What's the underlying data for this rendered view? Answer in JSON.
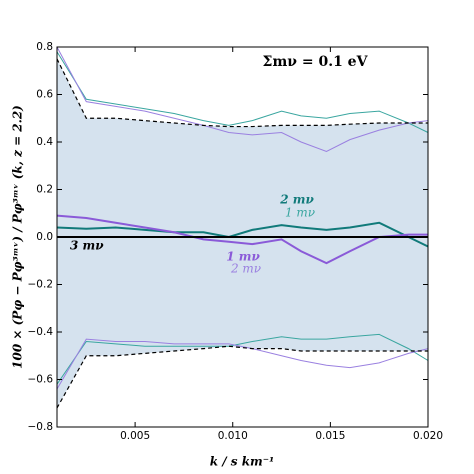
{
  "chart_data": {
    "type": "line",
    "title": "Σmν = 0.1 eV",
    "xlabel": "k / s km⁻¹",
    "ylabel": "100 × (Pφ − Pφ³ᵐᵛ) / Pφ³ᵐᵛ (k, z = 2.2)",
    "x": [
      0.001,
      0.0025,
      0.004,
      0.0055,
      0.007,
      0.0085,
      0.0098,
      0.011,
      0.0125,
      0.0135,
      0.0148,
      0.016,
      0.0175,
      0.019,
      0.02
    ],
    "xlim": [
      0.001,
      0.02
    ],
    "xticks": [
      0.005,
      {
        "value": 0.01,
        "label": "0.010"
      },
      0.015,
      {
        "value": 0.02,
        "label": "0.020"
      }
    ],
    "ylim": [
      -0.8,
      0.8
    ],
    "yticks": [
      {
        "value": -0.8,
        "label": "−0.8"
      },
      {
        "value": -0.6,
        "label": "−0.6"
      },
      {
        "value": -0.4,
        "label": "−0.4"
      },
      {
        "value": -0.2,
        "label": "−0.2"
      },
      {
        "value": 0,
        "label": "0.0"
      },
      0.2,
      0.4,
      0.6,
      0.8
    ],
    "band_color": "#d5e2ee",
    "series": [
      {
        "color": "#3aa6a0",
        "width": 1,
        "values": [
          0.78,
          0.58,
          0.56,
          0.54,
          0.52,
          0.49,
          0.47,
          0.49,
          0.53,
          0.51,
          0.5,
          0.52,
          0.53,
          0.48,
          0.44
        ]
      },
      {
        "color": "#9a80e0",
        "width": 1,
        "values": [
          0.8,
          0.57,
          0.55,
          0.53,
          0.5,
          0.47,
          0.44,
          0.43,
          0.44,
          0.4,
          0.36,
          0.41,
          0.45,
          0.48,
          0.49
        ]
      },
      {
        "color": "#000000",
        "width": 1.2,
        "dashed": true,
        "values": [
          0.75,
          0.5,
          0.5,
          0.49,
          0.48,
          0.47,
          0.465,
          0.465,
          0.47,
          0.47,
          0.47,
          0.475,
          0.48,
          0.48,
          0.48
        ]
      },
      {
        "color": "#3aa6a0",
        "width": 1,
        "values": [
          -0.62,
          -0.44,
          -0.45,
          -0.46,
          -0.46,
          -0.46,
          -0.46,
          -0.44,
          -0.42,
          -0.43,
          -0.43,
          -0.42,
          -0.41,
          -0.47,
          -0.52
        ]
      },
      {
        "color": "#9a80e0",
        "width": 1,
        "values": [
          -0.64,
          -0.43,
          -0.44,
          -0.44,
          -0.45,
          -0.45,
          -0.45,
          -0.47,
          -0.5,
          -0.52,
          -0.54,
          -0.55,
          -0.53,
          -0.49,
          -0.47
        ]
      },
      {
        "color": "#000000",
        "width": 1.2,
        "dashed": true,
        "values": [
          -0.72,
          -0.5,
          -0.5,
          -0.49,
          -0.48,
          -0.47,
          -0.46,
          -0.47,
          -0.47,
          -0.48,
          -0.48,
          -0.48,
          -0.48,
          -0.48,
          -0.48
        ]
      },
      {
        "color": "#117a7a",
        "width": 2,
        "values": [
          0.04,
          0.035,
          0.04,
          0.03,
          0.02,
          0.02,
          0.0,
          0.03,
          0.05,
          0.04,
          0.03,
          0.04,
          0.06,
          0.0,
          -0.04
        ]
      },
      {
        "color": "#8a5ad8",
        "width": 2,
        "values": [
          0.09,
          0.08,
          0.06,
          0.04,
          0.02,
          -0.01,
          -0.02,
          -0.03,
          -0.01,
          -0.06,
          -0.11,
          -0.06,
          0.0,
          0.01,
          0.01
        ]
      },
      {
        "color": "#000000",
        "width": 2,
        "values": [
          0,
          0,
          0,
          0,
          0,
          0,
          0,
          0,
          0,
          0,
          0,
          0,
          0,
          0,
          0
        ]
      }
    ],
    "annotations": [
      {
        "text": "2 mν",
        "color": "#117a7a",
        "bold": true
      },
      {
        "text": "1 mν",
        "color": "#3aa6a0"
      },
      {
        "text": "1 mν",
        "color": "#8a5ad8",
        "bold": true
      },
      {
        "text": "2 mν",
        "color": "#9a80e0"
      },
      {
        "text": "3 mν",
        "color": "#000000",
        "bold": true
      }
    ]
  }
}
